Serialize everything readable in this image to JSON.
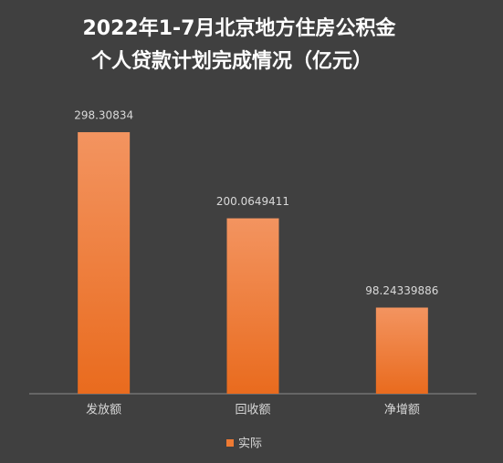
{
  "chart_data": {
    "type": "bar",
    "title": [
      "2022年1-7月北京地方住房公积金",
      "个人贷款计划完成情况（亿元）"
    ],
    "categories": [
      "发放额",
      "回收额",
      "净增额"
    ],
    "series": [
      {
        "name": "实际",
        "color": "#ee7a33",
        "values": [
          298.30834,
          200.0649411,
          98.24339886
        ]
      }
    ],
    "legend": "bottom"
  }
}
